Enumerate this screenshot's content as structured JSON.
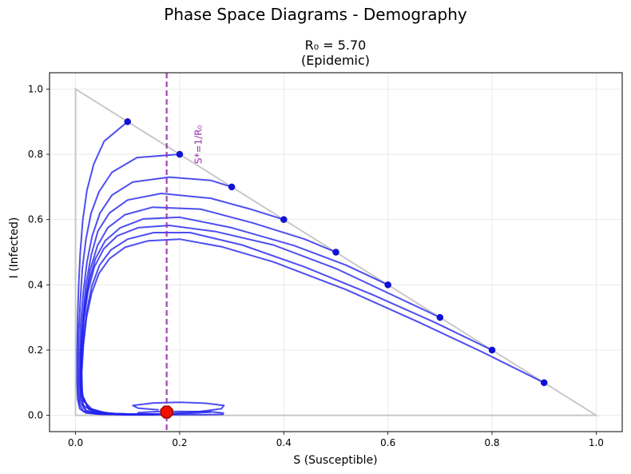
{
  "suptitle": "Phase Space Diagrams - Demography",
  "chart_data": {
    "type": "line",
    "title_line1": "R₀ = 5.70",
    "title_line2": "(Epidemic)",
    "xlabel": "S (Susceptible)",
    "ylabel": "I (Infected)",
    "xlim": [
      -0.05,
      1.05
    ],
    "ylim": [
      -0.05,
      1.05
    ],
    "xticks": [
      "0.0",
      "0.2",
      "0.4",
      "0.6",
      "0.8",
      "1.0"
    ],
    "yticks": [
      "0.0",
      "0.2",
      "0.4",
      "0.6",
      "0.8",
      "1.0"
    ],
    "grid": true,
    "colors": {
      "trajectory": "#2222ee",
      "start_point": "#1010dd",
      "boundary": "#bbbbbb",
      "threshold": "#9933aa",
      "equilibrium_fill": "#ee1100",
      "equilibrium_edge": "#990000"
    },
    "boundary": {
      "triangle": [
        [
          0,
          0
        ],
        [
          1,
          0
        ],
        [
          0,
          1
        ]
      ]
    },
    "threshold": {
      "x": 0.175,
      "label": "S*=1/R₀"
    },
    "equilibrium": {
      "x": 0.175,
      "y": 0.01
    },
    "start_points": [
      [
        0.1,
        0.9
      ],
      [
        0.2,
        0.8
      ],
      [
        0.3,
        0.7
      ],
      [
        0.4,
        0.6
      ],
      [
        0.5,
        0.5
      ],
      [
        0.6,
        0.4
      ],
      [
        0.7,
        0.3
      ],
      [
        0.8,
        0.2
      ],
      [
        0.9,
        0.1
      ]
    ],
    "series": [
      {
        "values": [
          [
            0.1,
            0.9
          ],
          [
            0.055,
            0.84
          ],
          [
            0.035,
            0.77
          ],
          [
            0.022,
            0.69
          ],
          [
            0.014,
            0.6
          ],
          [
            0.009,
            0.5
          ],
          [
            0.006,
            0.4
          ],
          [
            0.004,
            0.3
          ],
          [
            0.003,
            0.2
          ],
          [
            0.003,
            0.1
          ],
          [
            0.004,
            0.05
          ],
          [
            0.008,
            0.02
          ],
          [
            0.02,
            0.007
          ],
          [
            0.05,
            0.003
          ],
          [
            0.1,
            0.002
          ],
          [
            0.15,
            0.002
          ],
          [
            0.2,
            0.002
          ],
          [
            0.25,
            0.002
          ],
          [
            0.283,
            0.003
          ],
          [
            0.284,
            0.007
          ],
          [
            0.26,
            0.011
          ],
          [
            0.2,
            0.012
          ],
          [
            0.15,
            0.011
          ],
          [
            0.12,
            0.008
          ],
          [
            0.125,
            0.005
          ],
          [
            0.16,
            0.004
          ]
        ]
      },
      {
        "values": [
          [
            0.2,
            0.8
          ],
          [
            0.118,
            0.79
          ],
          [
            0.07,
            0.745
          ],
          [
            0.045,
            0.685
          ],
          [
            0.03,
            0.62
          ],
          [
            0.02,
            0.54
          ],
          [
            0.013,
            0.45
          ],
          [
            0.009,
            0.35
          ],
          [
            0.006,
            0.25
          ],
          [
            0.005,
            0.15
          ],
          [
            0.005,
            0.08
          ],
          [
            0.007,
            0.035
          ],
          [
            0.015,
            0.012
          ],
          [
            0.04,
            0.004
          ],
          [
            0.09,
            0.002
          ],
          [
            0.14,
            0.002
          ],
          [
            0.16,
            0.003
          ]
        ]
      },
      {
        "values": [
          [
            0.3,
            0.7
          ],
          [
            0.26,
            0.72
          ],
          [
            0.18,
            0.73
          ],
          [
            0.11,
            0.715
          ],
          [
            0.07,
            0.675
          ],
          [
            0.047,
            0.62
          ],
          [
            0.032,
            0.55
          ],
          [
            0.022,
            0.47
          ],
          [
            0.015,
            0.38
          ],
          [
            0.01,
            0.28
          ],
          [
            0.008,
            0.18
          ],
          [
            0.007,
            0.1
          ],
          [
            0.009,
            0.04
          ],
          [
            0.02,
            0.012
          ],
          [
            0.05,
            0.004
          ],
          [
            0.1,
            0.002
          ],
          [
            0.15,
            0.002
          ],
          [
            0.19,
            0.006
          ],
          [
            0.24,
            0.012
          ],
          [
            0.28,
            0.02
          ],
          [
            0.285,
            0.03
          ],
          [
            0.25,
            0.037
          ],
          [
            0.2,
            0.04
          ],
          [
            0.15,
            0.038
          ],
          [
            0.11,
            0.03
          ],
          [
            0.12,
            0.022
          ],
          [
            0.16,
            0.017
          ]
        ]
      },
      {
        "values": [
          [
            0.4,
            0.6
          ],
          [
            0.34,
            0.63
          ],
          [
            0.26,
            0.665
          ],
          [
            0.165,
            0.68
          ],
          [
            0.1,
            0.66
          ],
          [
            0.065,
            0.62
          ],
          [
            0.043,
            0.565
          ],
          [
            0.03,
            0.49
          ],
          [
            0.02,
            0.4
          ],
          [
            0.014,
            0.3
          ],
          [
            0.01,
            0.2
          ],
          [
            0.009,
            0.12
          ],
          [
            0.01,
            0.05
          ],
          [
            0.02,
            0.015
          ],
          [
            0.05,
            0.005
          ],
          [
            0.1,
            0.003
          ],
          [
            0.17,
            0.003
          ],
          [
            0.22,
            0.006
          ],
          [
            0.26,
            0.01
          ]
        ]
      },
      {
        "values": [
          [
            0.5,
            0.5
          ],
          [
            0.44,
            0.54
          ],
          [
            0.34,
            0.59
          ],
          [
            0.24,
            0.632
          ],
          [
            0.148,
            0.638
          ],
          [
            0.095,
            0.615
          ],
          [
            0.062,
            0.575
          ],
          [
            0.042,
            0.52
          ],
          [
            0.028,
            0.445
          ],
          [
            0.019,
            0.355
          ],
          [
            0.013,
            0.255
          ],
          [
            0.01,
            0.16
          ],
          [
            0.01,
            0.08
          ],
          [
            0.015,
            0.03
          ],
          [
            0.035,
            0.01
          ],
          [
            0.08,
            0.004
          ],
          [
            0.14,
            0.003
          ],
          [
            0.19,
            0.004
          ]
        ]
      },
      {
        "values": [
          [
            0.6,
            0.4
          ],
          [
            0.52,
            0.46
          ],
          [
            0.42,
            0.52
          ],
          [
            0.3,
            0.575
          ],
          [
            0.2,
            0.607
          ],
          [
            0.13,
            0.602
          ],
          [
            0.086,
            0.575
          ],
          [
            0.057,
            0.535
          ],
          [
            0.038,
            0.48
          ],
          [
            0.025,
            0.405
          ],
          [
            0.017,
            0.32
          ],
          [
            0.012,
            0.225
          ],
          [
            0.01,
            0.13
          ],
          [
            0.012,
            0.06
          ],
          [
            0.025,
            0.02
          ],
          [
            0.06,
            0.006
          ],
          [
            0.12,
            0.003
          ],
          [
            0.18,
            0.004
          ]
        ]
      },
      {
        "values": [
          [
            0.7,
            0.3
          ],
          [
            0.6,
            0.375
          ],
          [
            0.5,
            0.45
          ],
          [
            0.38,
            0.522
          ],
          [
            0.27,
            0.563
          ],
          [
            0.18,
            0.582
          ],
          [
            0.12,
            0.575
          ],
          [
            0.08,
            0.55
          ],
          [
            0.054,
            0.51
          ],
          [
            0.036,
            0.455
          ],
          [
            0.024,
            0.38
          ],
          [
            0.016,
            0.295
          ],
          [
            0.012,
            0.2
          ],
          [
            0.01,
            0.11
          ],
          [
            0.015,
            0.045
          ],
          [
            0.035,
            0.013
          ],
          [
            0.08,
            0.004
          ],
          [
            0.14,
            0.003
          ]
        ]
      },
      {
        "values": [
          [
            0.8,
            0.2
          ],
          [
            0.69,
            0.285
          ],
          [
            0.57,
            0.37
          ],
          [
            0.44,
            0.455
          ],
          [
            0.32,
            0.522
          ],
          [
            0.22,
            0.56
          ],
          [
            0.15,
            0.56
          ],
          [
            0.1,
            0.54
          ],
          [
            0.068,
            0.507
          ],
          [
            0.046,
            0.46
          ],
          [
            0.031,
            0.395
          ],
          [
            0.021,
            0.315
          ],
          [
            0.015,
            0.225
          ],
          [
            0.011,
            0.14
          ],
          [
            0.012,
            0.065
          ],
          [
            0.025,
            0.022
          ],
          [
            0.06,
            0.006
          ],
          [
            0.12,
            0.003
          ]
        ]
      },
      {
        "values": [
          [
            0.9,
            0.1
          ],
          [
            0.78,
            0.195
          ],
          [
            0.66,
            0.285
          ],
          [
            0.52,
            0.385
          ],
          [
            0.38,
            0.47
          ],
          [
            0.28,
            0.517
          ],
          [
            0.2,
            0.54
          ],
          [
            0.14,
            0.535
          ],
          [
            0.095,
            0.515
          ],
          [
            0.065,
            0.48
          ],
          [
            0.045,
            0.435
          ],
          [
            0.031,
            0.375
          ],
          [
            0.021,
            0.3
          ],
          [
            0.015,
            0.215
          ],
          [
            0.012,
            0.13
          ],
          [
            0.013,
            0.06
          ],
          [
            0.025,
            0.02
          ],
          [
            0.06,
            0.006
          ],
          [
            0.12,
            0.003
          ]
        ]
      }
    ]
  }
}
